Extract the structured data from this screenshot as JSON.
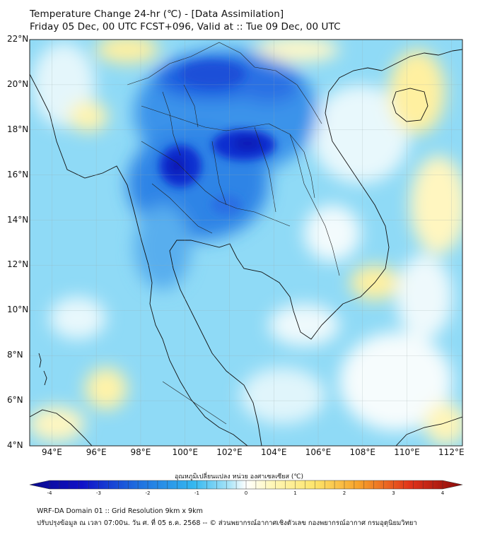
{
  "header": {
    "title_line1": "Temperature Change 24-hr (℃) - [Data Assimilation]",
    "title_line2": "Friday 05 Dec, 00 UTC FCST+096, Valid at :: Tue 09 Dec, 00 UTC"
  },
  "map": {
    "lat_labels": [
      "22°N",
      "20°N",
      "18°N",
      "16°N",
      "14°N",
      "12°N",
      "10°N",
      "8°N",
      "6°N",
      "4°N"
    ],
    "lat_values": [
      22,
      20,
      18,
      16,
      14,
      12,
      10,
      8,
      6,
      4
    ],
    "lon_labels": [
      "94°E",
      "96°E",
      "98°E",
      "100°E",
      "102°E",
      "104°E",
      "106°E",
      "108°E",
      "110°E",
      "112°E"
    ],
    "lon_values": [
      94,
      96,
      98,
      100,
      102,
      104,
      106,
      108,
      110,
      112
    ],
    "lat_range": [
      4,
      22
    ],
    "lon_range": [
      93,
      112.5
    ]
  },
  "colorbar": {
    "label": "อุณหภูมิเปลี่ยนแปลง หน่วย องศาเซลเซียส (℃)",
    "ticks": [
      "-4",
      "-3",
      "-2",
      "-1",
      "0",
      "1",
      "2",
      "3",
      "4"
    ],
    "tick_values": [
      -4,
      -3,
      -2,
      -1,
      0,
      1,
      2,
      3,
      4
    ],
    "colors": {
      "min": "#0a0a8c",
      "mid_cold": "#1e6fe0",
      "light_cold": "#7fd3f5",
      "neutral": "#ffffff",
      "light_warm": "#fff3a0",
      "mid_warm": "#f7a22a",
      "max": "#8a0a0a"
    }
  },
  "footer": {
    "line1": "WRF-DA Domain 01 :: Grid Resolution 9km x 9km",
    "line2": "ปรับปรุงข้อมูล ณ เวลา 07:00น. วัน ศ. ที่ 05 ธ.ค. 2568 -- © ส่วนพยากรณ์อากาศเชิงตัวเลข กองพยากรณ์อากาศ กรมอุตุนิยมวิทยา"
  }
}
